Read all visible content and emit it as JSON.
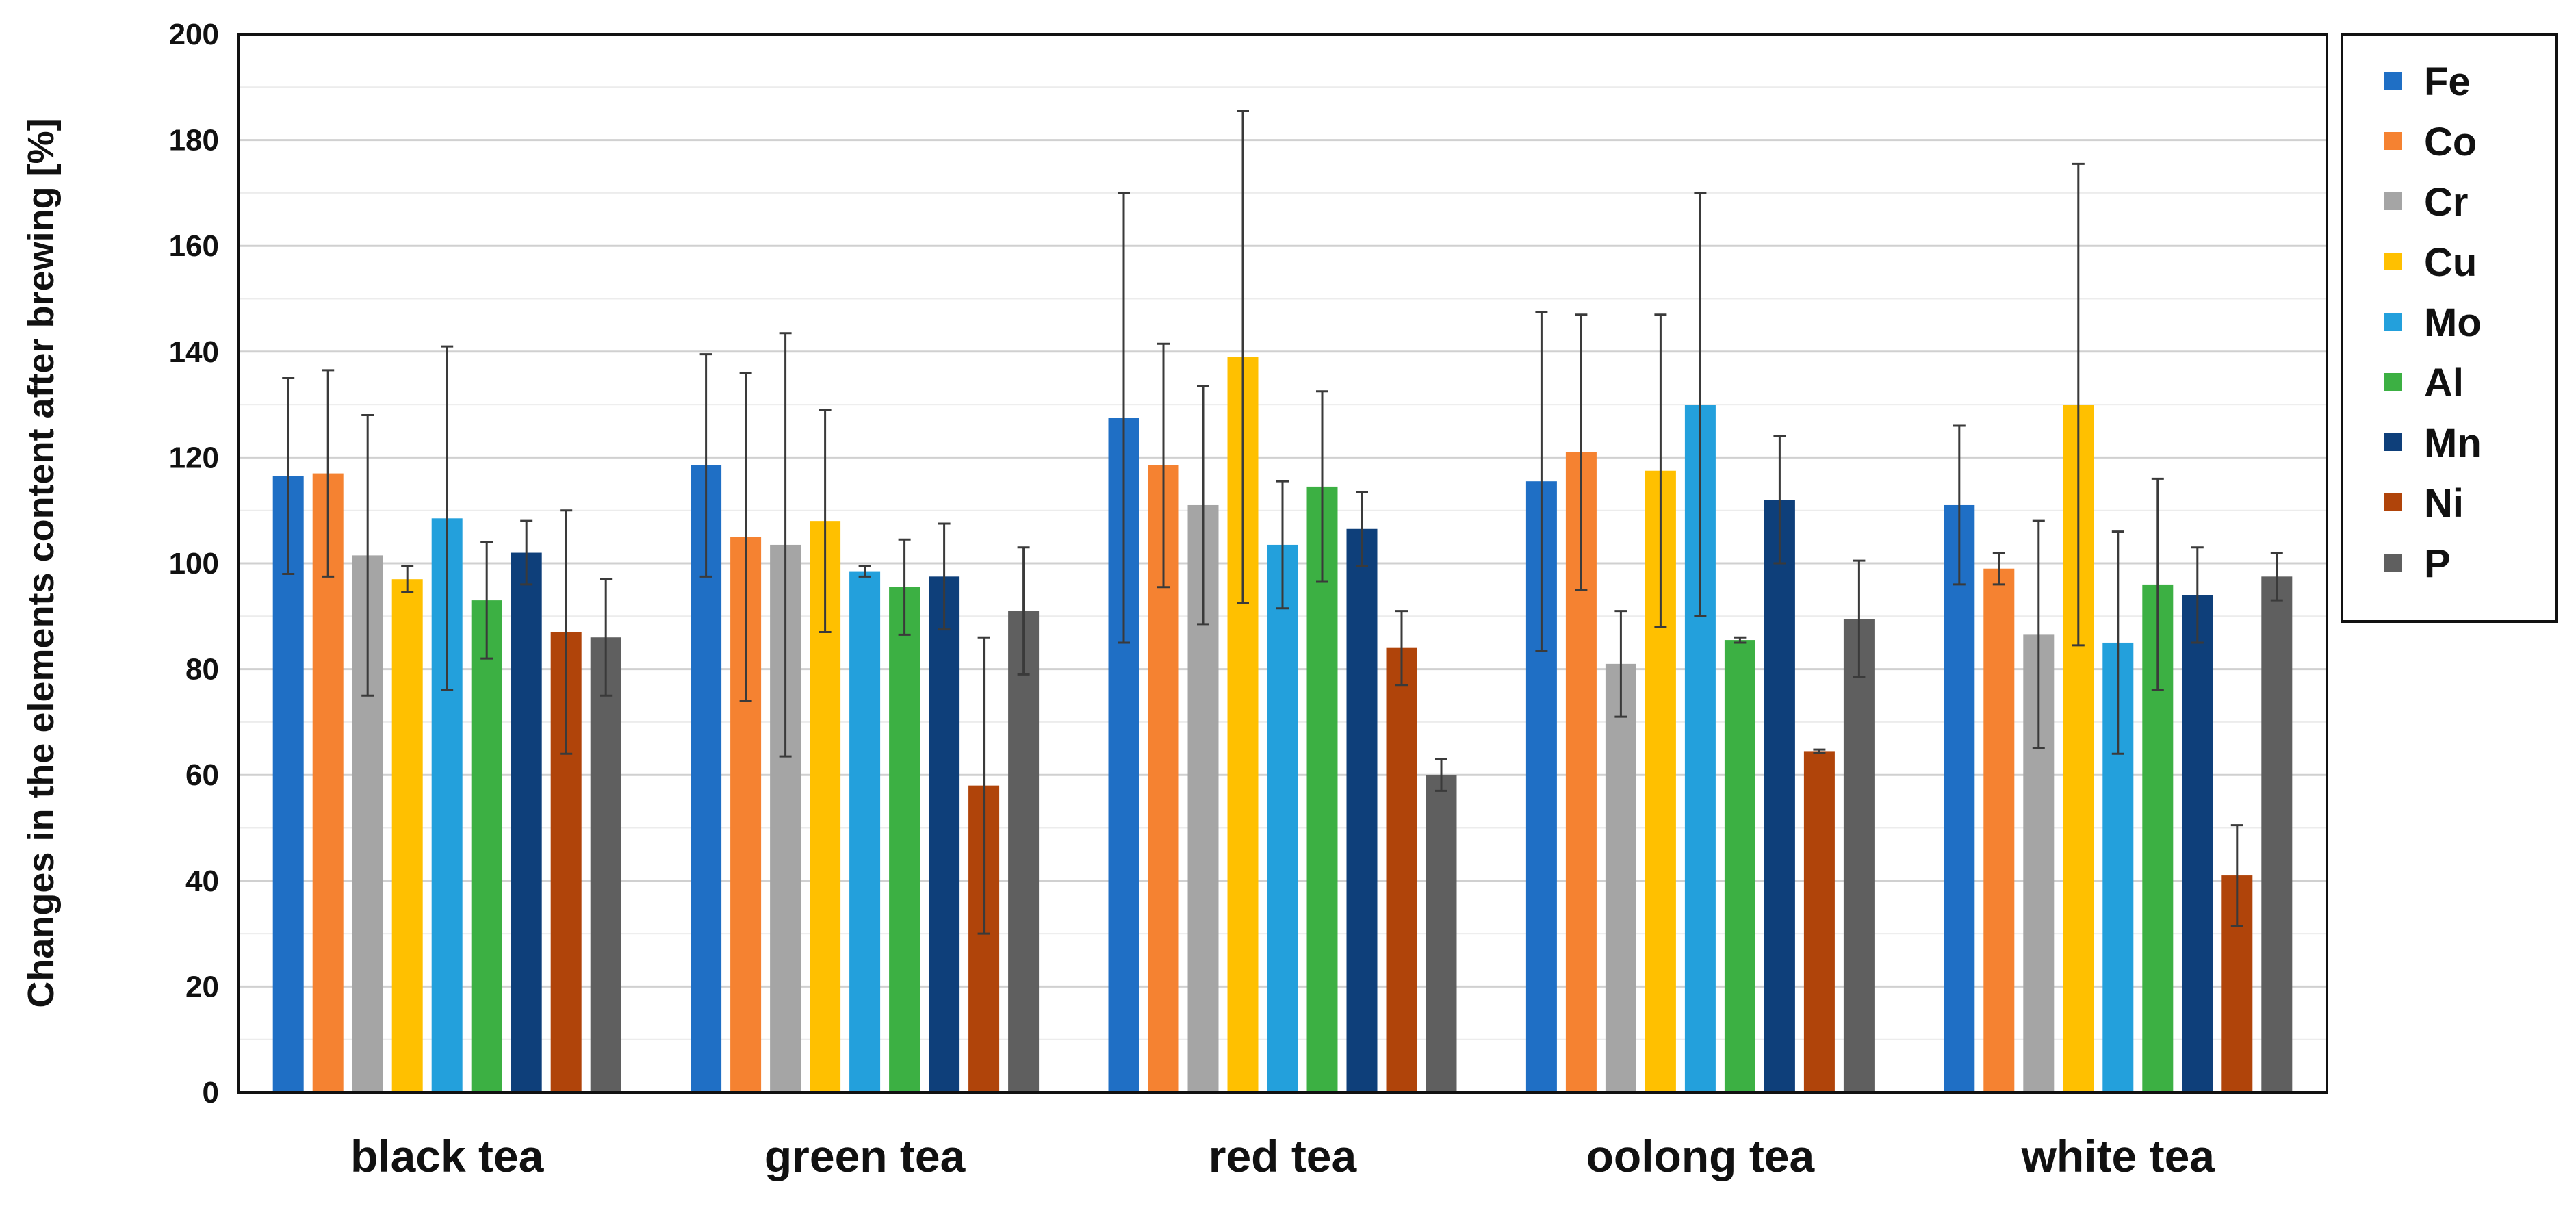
{
  "chart_data": {
    "type": "bar",
    "title": "",
    "xlabel": "",
    "ylabel": "Changes in the elements content after brewing [%]",
    "ylim": [
      0,
      200
    ],
    "yticks": [
      0,
      20,
      40,
      60,
      80,
      100,
      120,
      140,
      160,
      180,
      200
    ],
    "grid": true,
    "legend_position": "right",
    "categories": [
      "black tea",
      "green tea",
      "red tea",
      "oolong tea",
      "white tea"
    ],
    "series": [
      {
        "name": "Fe",
        "color": "#1f6fc5",
        "values": [
          116.5,
          118.5,
          127.5,
          115.5,
          111.0
        ],
        "errors": [
          18.5,
          21.0,
          42.5,
          32.0,
          15.0
        ]
      },
      {
        "name": "Co",
        "color": "#f58231",
        "values": [
          117.0,
          105.0,
          118.5,
          121.0,
          99.0
        ],
        "errors": [
          19.5,
          31.0,
          23.0,
          26.0,
          3.0
        ]
      },
      {
        "name": "Cr",
        "color": "#a5a5a5",
        "values": [
          101.5,
          103.5,
          111.0,
          81.0,
          86.5
        ],
        "errors": [
          26.5,
          40.0,
          22.5,
          10.0,
          21.5
        ]
      },
      {
        "name": "Cu",
        "color": "#ffc000",
        "values": [
          97.0,
          108.0,
          139.0,
          117.5,
          130.0
        ],
        "errors": [
          2.5,
          21.0,
          46.5,
          29.5,
          45.5
        ]
      },
      {
        "name": "Mo",
        "color": "#23a0dc",
        "values": [
          108.5,
          98.5,
          103.5,
          130.0,
          85.0
        ],
        "errors": [
          32.5,
          1.0,
          12.0,
          40.0,
          21.0
        ]
      },
      {
        "name": "Al",
        "color": "#3cb043",
        "values": [
          93.0,
          95.5,
          114.5,
          85.5,
          96.0
        ],
        "errors": [
          11.0,
          9.0,
          18.0,
          0.5,
          20.0
        ]
      },
      {
        "name": "Mn",
        "color": "#0e3f7a",
        "values": [
          102.0,
          97.5,
          106.5,
          112.0,
          94.0
        ],
        "errors": [
          6.0,
          10.0,
          7.0,
          12.0,
          9.0
        ]
      },
      {
        "name": "Ni",
        "color": "#b0440a",
        "values": [
          87.0,
          58.0,
          84.0,
          64.5,
          41.0
        ],
        "errors": [
          23.0,
          28.0,
          7.0,
          0.3,
          9.5
        ]
      },
      {
        "name": "P",
        "color": "#5f5f5f",
        "values": [
          86.0,
          91.0,
          60.0,
          89.5,
          97.5
        ],
        "errors": [
          11.0,
          12.0,
          3.0,
          11.0,
          4.5
        ]
      }
    ]
  }
}
